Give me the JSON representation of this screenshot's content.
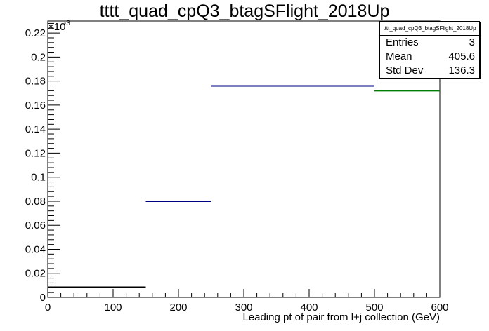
{
  "title": "tttt_quad_cpQ3_btagSFlight_2018Up",
  "stats": {
    "name": "tttt_quad_cpQ3_btagSFlight_2018Up",
    "rows": [
      {
        "label": "Entries",
        "value": "3"
      },
      {
        "label": "Mean",
        "value": "405.6"
      },
      {
        "label": "Std Dev",
        "value": "136.3"
      }
    ]
  },
  "chart_data": {
    "type": "bar",
    "title": "tttt_quad_cpQ3_btagSFlight_2018Up",
    "xlabel": "Leading pt of pair from l+j collection (GeV)",
    "ylabel": "",
    "y_exponent_label": "×10",
    "y_exponent": "-3",
    "xlim": [
      0,
      600
    ],
    "ylim": [
      0,
      0.23
    ],
    "x_major_ticks": [
      0,
      100,
      200,
      300,
      400,
      500,
      600
    ],
    "y_major_ticks": [
      0,
      0.02,
      0.04,
      0.06,
      0.08,
      0.1,
      0.12,
      0.14,
      0.16,
      0.18,
      0.2,
      0.22
    ],
    "x_tick_labels": [
      "0",
      "100",
      "200",
      "300",
      "400",
      "500",
      "600"
    ],
    "y_tick_labels": [
      "0",
      "0.02",
      "0.04",
      "0.06",
      "0.08",
      "0.1",
      "0.12",
      "0.14",
      "0.16",
      "0.18",
      "0.2",
      "0.22"
    ],
    "bins": [
      {
        "low": 0,
        "high": 150,
        "value": 0.0085,
        "color": "#000000"
      },
      {
        "low": 150,
        "high": 250,
        "value": 0.08,
        "color": "#000080"
      },
      {
        "low": 250,
        "high": 500,
        "value": 0.176,
        "color": "#000080"
      },
      {
        "low": 500,
        "high": 600,
        "value": 0.172,
        "color": "#008000"
      }
    ]
  }
}
